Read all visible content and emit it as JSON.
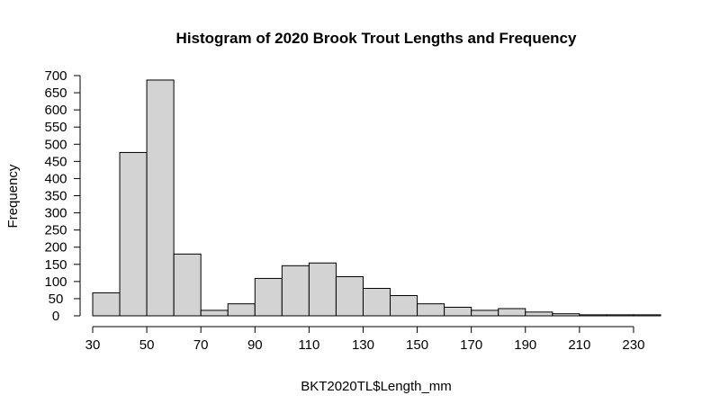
{
  "chart_data": {
    "type": "bar",
    "title": "Histogram of 2020 Brook Trout Lengths and Frequency",
    "xlabel": "BKT2020TL$Length_mm",
    "ylabel": "Frequency",
    "bin_edges": [
      30,
      40,
      50,
      60,
      70,
      80,
      90,
      100,
      110,
      120,
      130,
      140,
      150,
      160,
      170,
      180,
      190,
      200,
      210,
      220,
      230,
      240
    ],
    "values": [
      67,
      476,
      687,
      180,
      16,
      35,
      109,
      146,
      154,
      114,
      80,
      59,
      35,
      25,
      16,
      21,
      11,
      6,
      3,
      3,
      3
    ],
    "xlim": [
      30,
      240
    ],
    "ylim": [
      0,
      700
    ],
    "x_ticks": [
      30,
      50,
      70,
      90,
      110,
      130,
      150,
      170,
      190,
      210,
      230
    ],
    "y_ticks": [
      0,
      50,
      100,
      150,
      200,
      250,
      300,
      350,
      400,
      450,
      500,
      550,
      600,
      650,
      700
    ],
    "bar_color": "#d3d3d3",
    "grid": false,
    "legend": "none"
  }
}
